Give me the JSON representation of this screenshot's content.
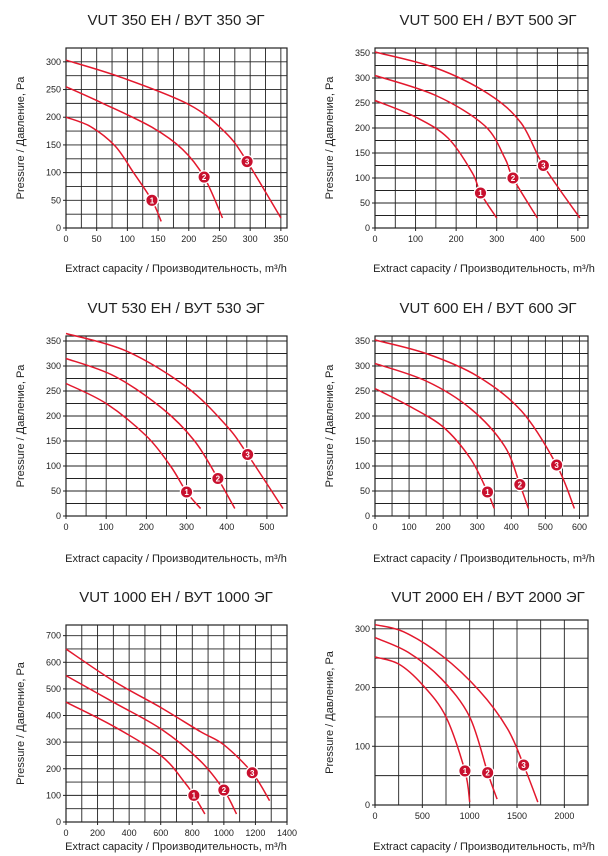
{
  "chart_data": [
    {
      "type": "line",
      "title": "VUT 350 EH / ВУТ 350 ЭГ",
      "xlabel": "Extract capacity / Производительность, m³/h",
      "ylabel": "Pressure / Давление, Pa",
      "xlim": [
        0,
        360
      ],
      "ylim": [
        0,
        325
      ],
      "xticks": [
        0,
        50,
        100,
        150,
        200,
        250,
        300,
        350
      ],
      "yticks": [
        0,
        50,
        100,
        150,
        200,
        250,
        300
      ],
      "xgrid": 25,
      "ygrid": 25,
      "series": [
        {
          "marker": "1",
          "marker_point": [
            140,
            50
          ],
          "points": [
            [
              0,
              200
            ],
            [
              40,
              183
            ],
            [
              80,
              148
            ],
            [
              110,
              100
            ],
            [
              140,
              50
            ],
            [
              155,
              12
            ]
          ]
        },
        {
          "marker": "2",
          "marker_point": [
            225,
            92
          ],
          "points": [
            [
              0,
              255
            ],
            [
              60,
              225
            ],
            [
              140,
              182
            ],
            [
              190,
              142
            ],
            [
              225,
              92
            ],
            [
              255,
              18
            ]
          ]
        },
        {
          "marker": "3",
          "marker_point": [
            295,
            120
          ],
          "points": [
            [
              0,
              303
            ],
            [
              90,
              272
            ],
            [
              200,
              223
            ],
            [
              260,
              172
            ],
            [
              295,
              120
            ],
            [
              350,
              18
            ]
          ]
        }
      ]
    },
    {
      "type": "line",
      "title": "VUT 500 EH / ВУТ 500 ЭГ",
      "xlabel": "Extract capacity / Производительность, m³/h",
      "ylabel": "Pressure / Давление, Pa",
      "xlim": [
        0,
        525
      ],
      "ylim": [
        0,
        360
      ],
      "xticks": [
        0,
        100,
        200,
        300,
        400,
        500
      ],
      "yticks": [
        0,
        50,
        100,
        150,
        200,
        250,
        300,
        350
      ],
      "xgrid": 50,
      "ygrid": 25,
      "series": [
        {
          "marker": "1",
          "marker_point": [
            260,
            70
          ],
          "points": [
            [
              0,
              255
            ],
            [
              100,
              222
            ],
            [
              180,
              180
            ],
            [
              240,
              110
            ],
            [
              260,
              70
            ],
            [
              300,
              20
            ]
          ]
        },
        {
          "marker": "2",
          "marker_point": [
            340,
            100
          ],
          "points": [
            [
              0,
              305
            ],
            [
              150,
              265
            ],
            [
              270,
              205
            ],
            [
              320,
              140
            ],
            [
              340,
              100
            ],
            [
              400,
              20
            ]
          ]
        },
        {
          "marker": "3",
          "marker_point": [
            415,
            125
          ],
          "points": [
            [
              0,
              352
            ],
            [
              150,
              320
            ],
            [
              280,
              268
            ],
            [
              360,
              210
            ],
            [
              415,
              125
            ],
            [
              505,
              20
            ]
          ]
        }
      ]
    },
    {
      "type": "line",
      "title": "VUT 530 EH / ВУТ 530 ЭГ",
      "xlabel": "Extract capacity / Производительность, m³/h",
      "ylabel": "Pressure / Давление, Pa",
      "xlim": [
        0,
        550
      ],
      "ylim": [
        0,
        360
      ],
      "xticks": [
        0,
        100,
        200,
        300,
        400,
        500
      ],
      "yticks": [
        0,
        50,
        100,
        150,
        200,
        250,
        300,
        350
      ],
      "xgrid": 50,
      "ygrid": 25,
      "series": [
        {
          "marker": "1",
          "marker_point": [
            300,
            48
          ],
          "points": [
            [
              0,
              265
            ],
            [
              100,
              225
            ],
            [
              200,
              160
            ],
            [
              260,
              100
            ],
            [
              300,
              48
            ],
            [
              335,
              15
            ]
          ]
        },
        {
          "marker": "2",
          "marker_point": [
            378,
            75
          ],
          "points": [
            [
              0,
              315
            ],
            [
              120,
              280
            ],
            [
              240,
              215
            ],
            [
              320,
              150
            ],
            [
              378,
              75
            ],
            [
              420,
              15
            ]
          ]
        },
        {
          "marker": "3",
          "marker_point": [
            452,
            123
          ],
          "points": [
            [
              0,
              365
            ],
            [
              150,
              330
            ],
            [
              300,
              258
            ],
            [
              400,
              180
            ],
            [
              452,
              123
            ],
            [
              540,
              15
            ]
          ]
        }
      ]
    },
    {
      "type": "line",
      "title": "VUT 600 EH / ВУТ 600 ЭГ",
      "xlabel": "Extract capacity / Производительность, m³/h",
      "ylabel": "Pressure / Давление, Pa",
      "xlim": [
        0,
        625
      ],
      "ylim": [
        0,
        360
      ],
      "xticks": [
        0,
        100,
        200,
        300,
        400,
        500,
        600
      ],
      "yticks": [
        0,
        50,
        100,
        150,
        200,
        250,
        300,
        350
      ],
      "xgrid": 50,
      "ygrid": 25,
      "series": [
        {
          "marker": "1",
          "marker_point": [
            330,
            48
          ],
          "points": [
            [
              0,
              255
            ],
            [
              100,
              220
            ],
            [
              200,
              178
            ],
            [
              280,
              115
            ],
            [
              330,
              48
            ],
            [
              350,
              15
            ]
          ]
        },
        {
          "marker": "2",
          "marker_point": [
            425,
            63
          ],
          "points": [
            [
              0,
              305
            ],
            [
              150,
              270
            ],
            [
              280,
              215
            ],
            [
              380,
              140
            ],
            [
              425,
              63
            ],
            [
              450,
              15
            ]
          ]
        },
        {
          "marker": "3",
          "marker_point": [
            533,
            102
          ],
          "points": [
            [
              0,
              352
            ],
            [
              150,
              325
            ],
            [
              300,
              280
            ],
            [
              430,
              210
            ],
            [
              533,
              102
            ],
            [
              585,
              15
            ]
          ]
        }
      ]
    },
    {
      "type": "line",
      "title": "VUT 1000 EH / ВУТ 1000 ЭГ",
      "xlabel": "Extract capacity / Производительность, m³/h",
      "ylabel": "Pressure / Давление, Pa",
      "xlim": [
        0,
        1400
      ],
      "ylim": [
        0,
        740
      ],
      "xticks": [
        0,
        200,
        400,
        600,
        800,
        1000,
        1200,
        1400
      ],
      "yticks": [
        0,
        100,
        200,
        300,
        400,
        500,
        600,
        700
      ],
      "xgrid": 100,
      "ygrid": 50,
      "series": [
        {
          "marker": "1",
          "marker_point": [
            810,
            100
          ],
          "points": [
            [
              0,
              450
            ],
            [
              300,
              360
            ],
            [
              600,
              250
            ],
            [
              750,
              150
            ],
            [
              810,
              100
            ],
            [
              880,
              30
            ]
          ]
        },
        {
          "marker": "2",
          "marker_point": [
            1000,
            120
          ],
          "points": [
            [
              0,
              550
            ],
            [
              300,
              450
            ],
            [
              600,
              350
            ],
            [
              850,
              230
            ],
            [
              1000,
              120
            ],
            [
              1080,
              30
            ]
          ]
        },
        {
          "marker": "3",
          "marker_point": [
            1180,
            185
          ],
          "points": [
            [
              0,
              650
            ],
            [
              300,
              530
            ],
            [
              600,
              430
            ],
            [
              850,
              340
            ],
            [
              1000,
              290
            ],
            [
              1180,
              185
            ],
            [
              1290,
              80
            ]
          ]
        }
      ]
    },
    {
      "type": "line",
      "title": "VUT 2000 EH / ВУТ 2000 ЭГ",
      "xlabel": "Extract capacity / Производительность, m³/h",
      "ylabel": "Pressure / Давление, Pa",
      "xlim": [
        0,
        2250
      ],
      "ylim": [
        0,
        315
      ],
      "xticks": [
        0,
        500,
        1000,
        1500,
        2000
      ],
      "yticks": [
        0,
        100,
        200,
        300
      ],
      "xgrid": 250,
      "ygrid": 50,
      "series": [
        {
          "marker": "1",
          "marker_point": [
            950,
            58
          ],
          "points": [
            [
              0,
              252
            ],
            [
              250,
              240
            ],
            [
              500,
              205
            ],
            [
              750,
              150
            ],
            [
              950,
              58
            ],
            [
              1000,
              5
            ]
          ]
        },
        {
          "marker": "2",
          "marker_point": [
            1190,
            55
          ],
          "points": [
            [
              0,
              285
            ],
            [
              350,
              260
            ],
            [
              700,
              215
            ],
            [
              1000,
              150
            ],
            [
              1190,
              55
            ],
            [
              1290,
              10
            ]
          ]
        },
        {
          "marker": "3",
          "marker_point": [
            1570,
            68
          ],
          "points": [
            [
              0,
              307
            ],
            [
              300,
              295
            ],
            [
              700,
              255
            ],
            [
              1100,
              195
            ],
            [
              1400,
              130
            ],
            [
              1570,
              68
            ],
            [
              1720,
              5
            ]
          ]
        }
      ]
    }
  ]
}
